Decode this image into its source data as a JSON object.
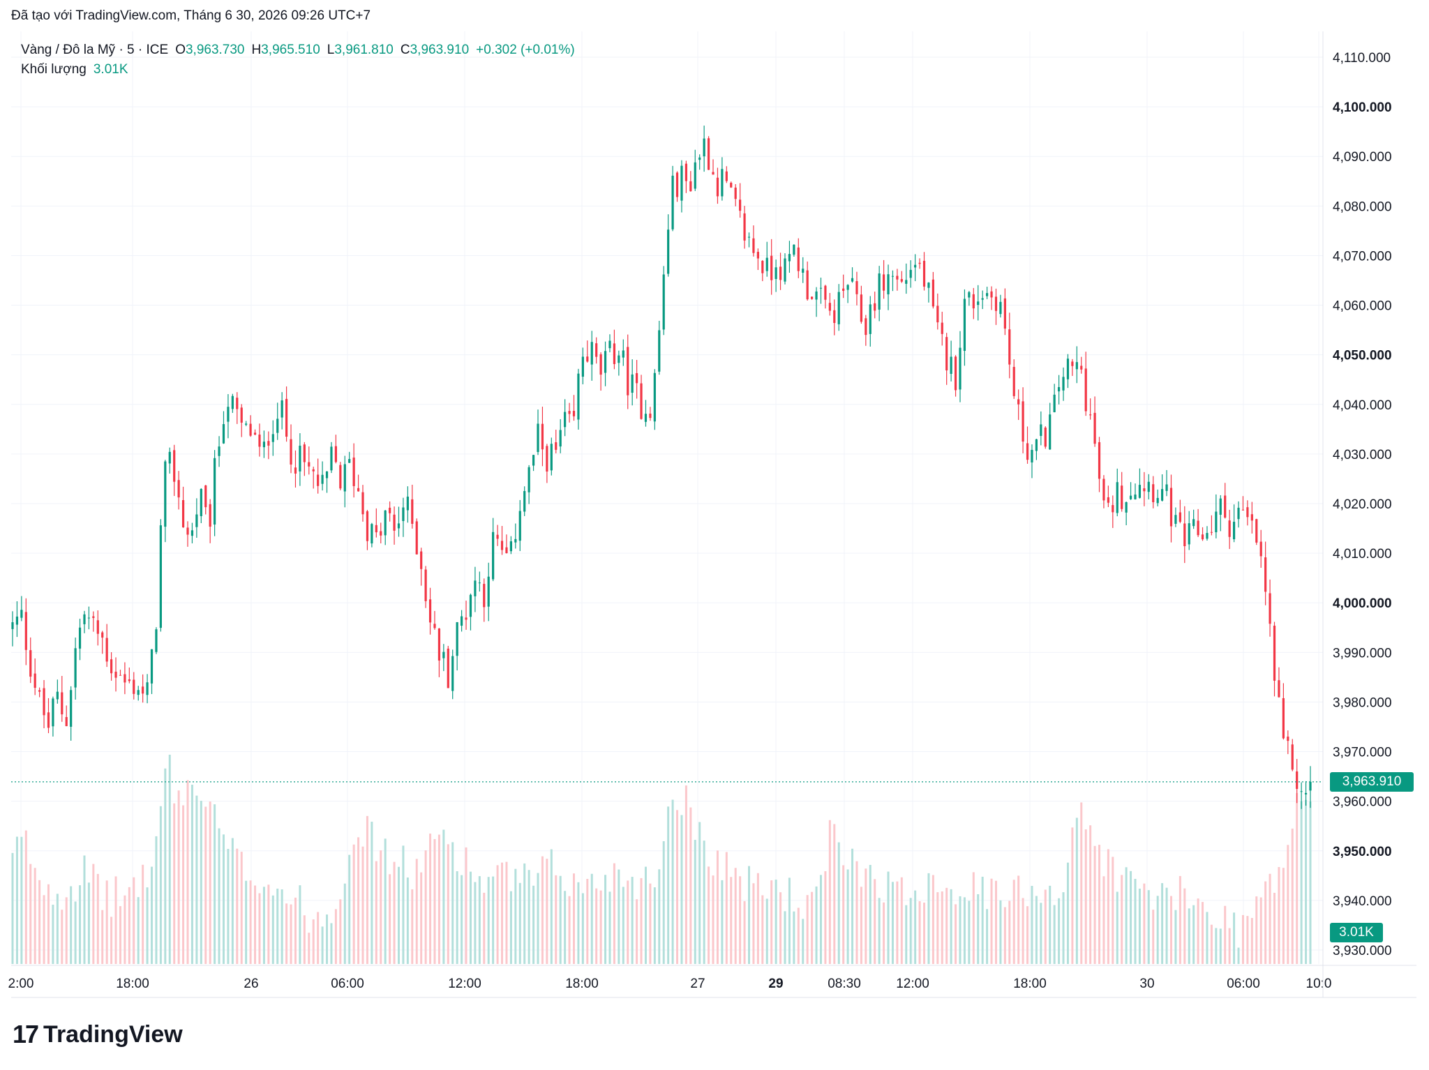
{
  "caption": "Đã tạo với TradingView.com, Tháng 6 30, 2026 09:26 UTC+7",
  "legend": {
    "symbol": "Vàng / Đô la Mỹ · 5 · ICE",
    "o_label": "O",
    "o_value": "3,963.730",
    "h_label": "H",
    "h_value": "3,965.510",
    "l_label": "L",
    "l_value": "3,961.810",
    "c_label": "C",
    "c_value": "3,963.910",
    "change": "+0.302 (+0.01%)",
    "volume_label": "Khối lượng",
    "volume_value": "3.01K"
  },
  "price_tag": "3,963.910",
  "volume_tag": "3.01K",
  "logo_text": "TradingView",
  "logo_mark": "17",
  "colors": {
    "up": "#089981",
    "down": "#f23645",
    "up_volume": "#b2dfdb",
    "down_volume": "#fbc7cb",
    "grid": "#f0f3fa",
    "text": "#131722"
  },
  "chart_data": {
    "type": "candlestick",
    "title": "Vàng / Đô la Mỹ · 5 · ICE",
    "ylim": [
      3925,
      4115
    ],
    "y_ticks": [
      {
        "value": 4110,
        "label": "4,110.000",
        "bold": false
      },
      {
        "value": 4100,
        "label": "4,100.000",
        "bold": true
      },
      {
        "value": 4090,
        "label": "4,090.000",
        "bold": false
      },
      {
        "value": 4080,
        "label": "4,080.000",
        "bold": false
      },
      {
        "value": 4070,
        "label": "4,070.000",
        "bold": false
      },
      {
        "value": 4060,
        "label": "4,060.000",
        "bold": false
      },
      {
        "value": 4050,
        "label": "4,050.000",
        "bold": true
      },
      {
        "value": 4040,
        "label": "4,040.000",
        "bold": false
      },
      {
        "value": 4030,
        "label": "4,030.000",
        "bold": false
      },
      {
        "value": 4020,
        "label": "4,020.000",
        "bold": false
      },
      {
        "value": 4010,
        "label": "4,010.000",
        "bold": false
      },
      {
        "value": 4000,
        "label": "4,000.000",
        "bold": true
      },
      {
        "value": 3990,
        "label": "3,990.000",
        "bold": false
      },
      {
        "value": 3980,
        "label": "3,980.000",
        "bold": false
      },
      {
        "value": 3970,
        "label": "3,970.000",
        "bold": false
      },
      {
        "value": 3960,
        "label": "3,960.000",
        "bold": false
      },
      {
        "value": 3950,
        "label": "3,950.000",
        "bold": true
      },
      {
        "value": 3940,
        "label": "3,940.000",
        "bold": false
      },
      {
        "value": 3930,
        "label": "3,930.000",
        "bold": false
      }
    ],
    "x_ticks": [
      {
        "label": "2:00",
        "bold": false
      },
      {
        "label": "18:00",
        "bold": false
      },
      {
        "label": "26",
        "bold": false
      },
      {
        "label": "06:00",
        "bold": false
      },
      {
        "label": "12:00",
        "bold": false
      },
      {
        "label": "18:00",
        "bold": false
      },
      {
        "label": "27",
        "bold": false
      },
      {
        "label": "29",
        "bold": true
      },
      {
        "label": "08:30",
        "bold": false
      },
      {
        "label": "12:00",
        "bold": false
      },
      {
        "label": "18:00",
        "bold": false
      },
      {
        "label": "30",
        "bold": false
      },
      {
        "label": "06:00",
        "bold": false
      },
      {
        "label": "10:0",
        "bold": false
      }
    ],
    "last_price": 3963.91,
    "close_path": [
      3995,
      3997,
      3988,
      3980,
      3975,
      3981,
      3976,
      3990,
      3998,
      3995,
      3993,
      3988,
      3985,
      3983,
      3984,
      3980,
      3992,
      4025,
      4028,
      4018,
      4012,
      4022,
      4014,
      4030,
      4042,
      4038,
      4034,
      4035,
      4028,
      4036,
      4040,
      4032,
      4029,
      4027,
      4025,
      4022,
      4030,
      4024,
      4028,
      4022,
      4015,
      4012,
      4018,
      4014,
      4020,
      4016,
      4008,
      3996,
      3990,
      3986,
      3994,
      3999,
      4005,
      4002,
      4012,
      4010,
      4008,
      4020,
      4025,
      4033,
      4030,
      4029,
      4036,
      4034,
      4050,
      4051,
      4046,
      4049,
      4052,
      4046,
      4042,
      4040,
      4040,
      4060,
      4082,
      4086,
      4084,
      4090,
      4093,
      4085,
      4085,
      4080,
      4076,
      4072,
      4070,
      4066,
      4070,
      4066,
      4072,
      4065,
      4063,
      4060,
      4058,
      4060,
      4065,
      4059,
      4056,
      4062,
      4065,
      4066,
      4064,
      4068,
      4068,
      4062,
      4054,
      4050,
      4045,
      4060,
      4061,
      4063,
      4062,
      4062,
      4050,
      4038,
      4032,
      4030,
      4034,
      4037,
      4047,
      4046,
      4048,
      4040,
      4028,
      4016,
      4022,
      4022,
      4024,
      4025,
      4024,
      4023,
      4020,
      4014,
      4012,
      4014,
      4014,
      4016,
      4019,
      4016,
      4018,
      4016,
      4012,
      4002,
      3984,
      3970,
      3968,
      3960,
      3963.91
    ],
    "volume_path": [
      0.45,
      0.55,
      0.45,
      0.35,
      0.33,
      0.32,
      0.35,
      0.4,
      0.34,
      0.3,
      0.29,
      0.3,
      0.35,
      0.38,
      0.48,
      0.9,
      0.7,
      0.78,
      0.75,
      0.7,
      0.6,
      0.5,
      0.45,
      0.4,
      0.38,
      0.36,
      0.33,
      0.3,
      0.26,
      0.22,
      0.2,
      0.24,
      0.3,
      0.55,
      0.6,
      0.55,
      0.5,
      0.45,
      0.44,
      0.4,
      0.42,
      0.5,
      0.58,
      0.52,
      0.46,
      0.4,
      0.36,
      0.35,
      0.37,
      0.38,
      0.36,
      0.34,
      0.4,
      0.42,
      0.38,
      0.34,
      0.33,
      0.35,
      0.38,
      0.4,
      0.38,
      0.37,
      0.36,
      0.38,
      0.65,
      0.75,
      0.7,
      0.6,
      0.5,
      0.45,
      0.43,
      0.38,
      0.34,
      0.33,
      0.34,
      0.33,
      0.3,
      0.27,
      0.22,
      0.32,
      0.55,
      0.5,
      0.45,
      0.42,
      0.4,
      0.36,
      0.33,
      0.3,
      0.32,
      0.35,
      0.38,
      0.36,
      0.34,
      0.33,
      0.32,
      0.31,
      0.3,
      0.28,
      0.3,
      0.32,
      0.34,
      0.34,
      0.3,
      0.36,
      0.68,
      0.6,
      0.52,
      0.45,
      0.4,
      0.36,
      0.34,
      0.31,
      0.3,
      0.28,
      0.3,
      0.28,
      0.25,
      0.24,
      0.22,
      0.18,
      0.16,
      0.2,
      0.28,
      0.33,
      0.4,
      0.55,
      0.75,
      0.65
    ]
  }
}
